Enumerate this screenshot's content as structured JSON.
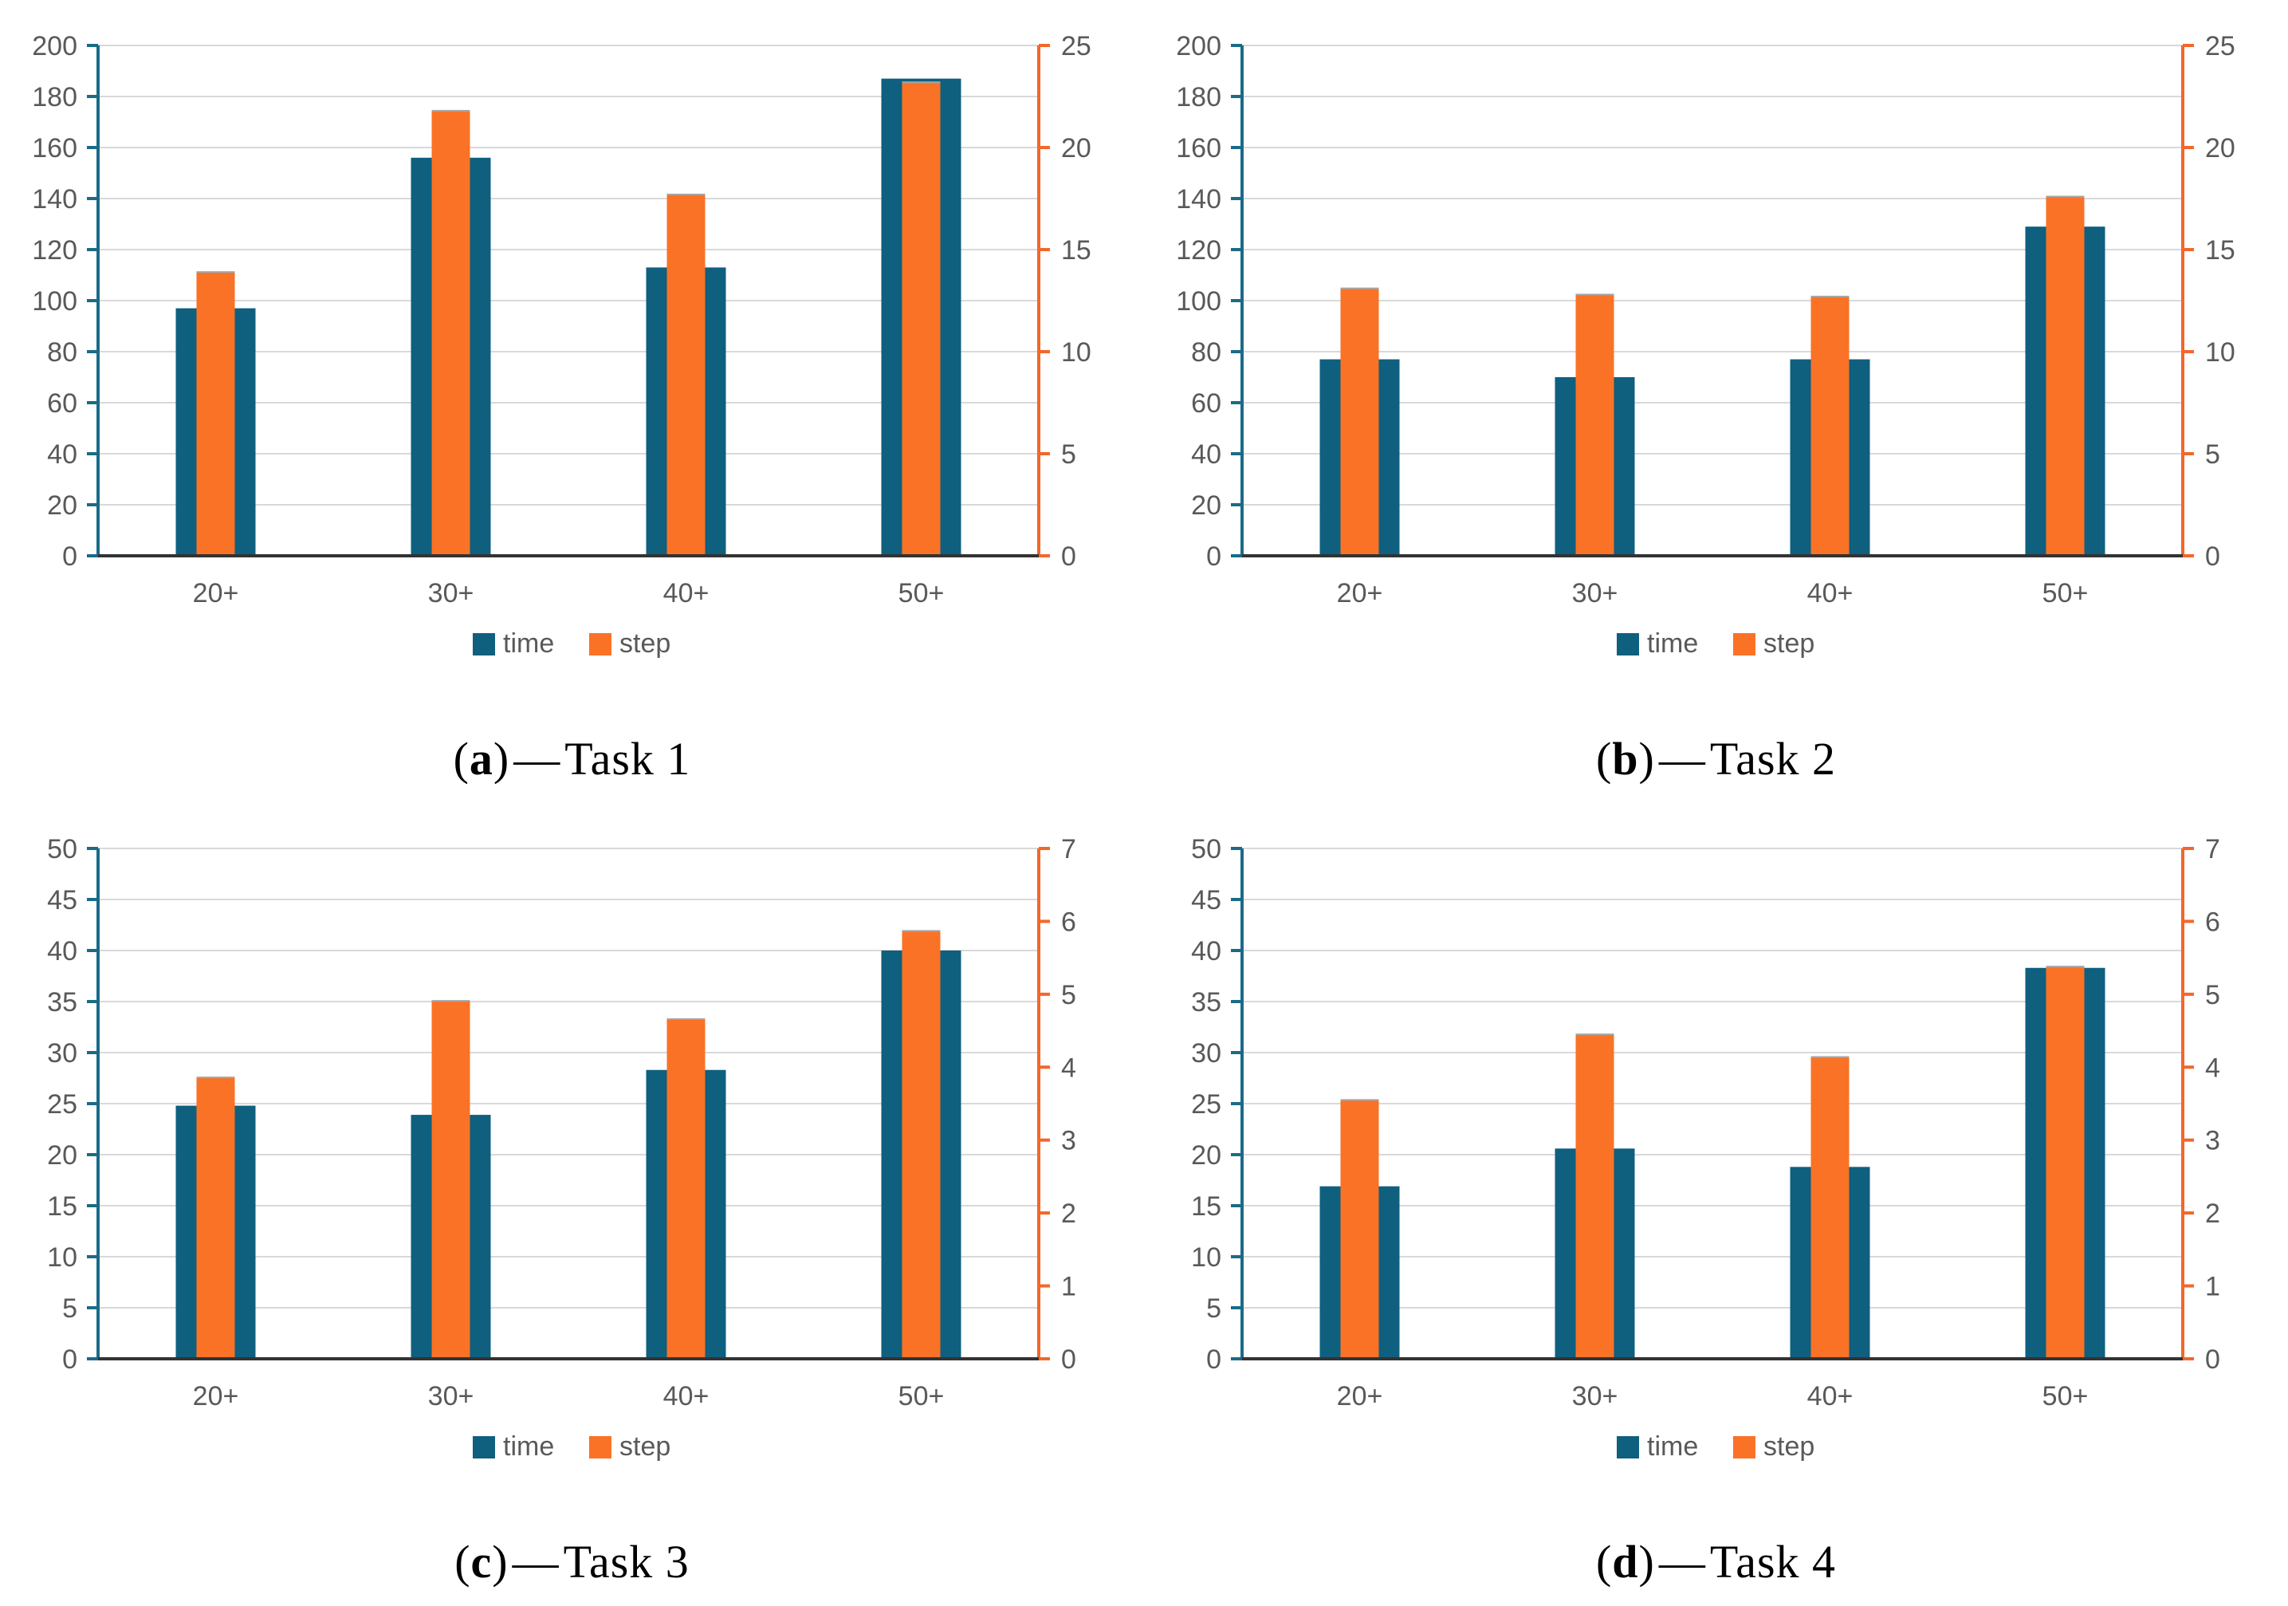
{
  "colors": {
    "time_bar": "#0F5F7F",
    "step_bar": "#FA7226",
    "grid_line": "#D9D9D9",
    "bottom_axis": "#333333",
    "left_axis": "#1A6B88",
    "right_axis": "#F4662A",
    "tick_label": "#595959",
    "legend_label": "#595959",
    "step_bar_top_edge": "#A6A6A6"
  },
  "legend": {
    "items": [
      {
        "label": "time"
      },
      {
        "label": "step"
      }
    ]
  },
  "chart_data": [
    {
      "type": "bar",
      "panel": "a",
      "caption": {
        "open": "(",
        "letter": "a",
        "close": ")",
        "dash": "—",
        "title": "Task 1"
      },
      "categories": [
        "20+",
        "30+",
        "40+",
        "50+"
      ],
      "series": [
        {
          "name": "time",
          "axis": "left",
          "values": [
            97,
            156,
            113,
            187
          ]
        },
        {
          "name": "step",
          "axis": "right",
          "values": [
            13.9,
            21.8,
            17.7,
            23.2
          ]
        }
      ],
      "left_axis": {
        "min": 0,
        "max": 200,
        "tick_step": 20,
        "tick_labels": [
          "0",
          "20",
          "40",
          "60",
          "80",
          "100",
          "120",
          "140",
          "160",
          "180",
          "200"
        ]
      },
      "right_axis": {
        "min": 0,
        "max": 25,
        "tick_step": 5,
        "tick_labels": [
          "0",
          "5",
          "10",
          "15",
          "20",
          "25"
        ]
      },
      "grid": true,
      "legend_position": "bottom"
    },
    {
      "type": "bar",
      "panel": "b",
      "caption": {
        "open": "(",
        "letter": "b",
        "close": ")",
        "dash": "—",
        "title": "Task 2"
      },
      "categories": [
        "20+",
        "30+",
        "40+",
        "50+"
      ],
      "series": [
        {
          "name": "time",
          "axis": "left",
          "values": [
            77,
            70,
            77,
            129
          ]
        },
        {
          "name": "step",
          "axis": "right",
          "values": [
            13.1,
            12.8,
            12.7,
            17.6
          ]
        }
      ],
      "left_axis": {
        "min": 0,
        "max": 200,
        "tick_step": 20,
        "tick_labels": [
          "0",
          "20",
          "40",
          "60",
          "80",
          "100",
          "120",
          "140",
          "160",
          "180",
          "200"
        ]
      },
      "right_axis": {
        "min": 0,
        "max": 25,
        "tick_step": 5,
        "tick_labels": [
          "0",
          "5",
          "10",
          "15",
          "20",
          "25"
        ]
      },
      "grid": true,
      "legend_position": "bottom"
    },
    {
      "type": "bar",
      "panel": "c",
      "caption": {
        "open": "(",
        "letter": "c",
        "close": ")",
        "dash": "—",
        "title": "Task 3"
      },
      "categories": [
        "20+",
        "30+",
        "40+",
        "50+"
      ],
      "series": [
        {
          "name": "time",
          "axis": "left",
          "values": [
            24.8,
            23.9,
            28.3,
            40
          ]
        },
        {
          "name": "step",
          "axis": "right",
          "values": [
            3.86,
            4.91,
            4.66,
            5.87
          ]
        }
      ],
      "left_axis": {
        "min": 0,
        "max": 50,
        "tick_step": 5,
        "tick_labels": [
          "0",
          "5",
          "10",
          "15",
          "20",
          "25",
          "30",
          "35",
          "40",
          "45",
          "50"
        ]
      },
      "right_axis": {
        "min": 0,
        "max": 7,
        "tick_step": 1,
        "tick_labels": [
          "0",
          "1",
          "2",
          "3",
          "4",
          "5",
          "6",
          "7"
        ]
      },
      "grid": true,
      "legend_position": "bottom"
    },
    {
      "type": "bar",
      "panel": "d",
      "caption": {
        "open": "(",
        "letter": "d",
        "close": ")",
        "dash": "—",
        "title": "Task 4"
      },
      "categories": [
        "20+",
        "30+",
        "40+",
        "50+"
      ],
      "series": [
        {
          "name": "time",
          "axis": "left",
          "values": [
            16.9,
            20.6,
            18.8,
            38.3
          ]
        },
        {
          "name": "step",
          "axis": "right",
          "values": [
            3.55,
            4.45,
            4.14,
            5.38
          ]
        }
      ],
      "left_axis": {
        "min": 0,
        "max": 50,
        "tick_step": 5,
        "tick_labels": [
          "0",
          "5",
          "10",
          "15",
          "20",
          "25",
          "30",
          "35",
          "40",
          "45",
          "50"
        ]
      },
      "right_axis": {
        "min": 0,
        "max": 7,
        "tick_step": 1,
        "tick_labels": [
          "0",
          "1",
          "2",
          "3",
          "4",
          "5",
          "6",
          "7"
        ]
      },
      "grid": true,
      "legend_position": "bottom"
    }
  ]
}
